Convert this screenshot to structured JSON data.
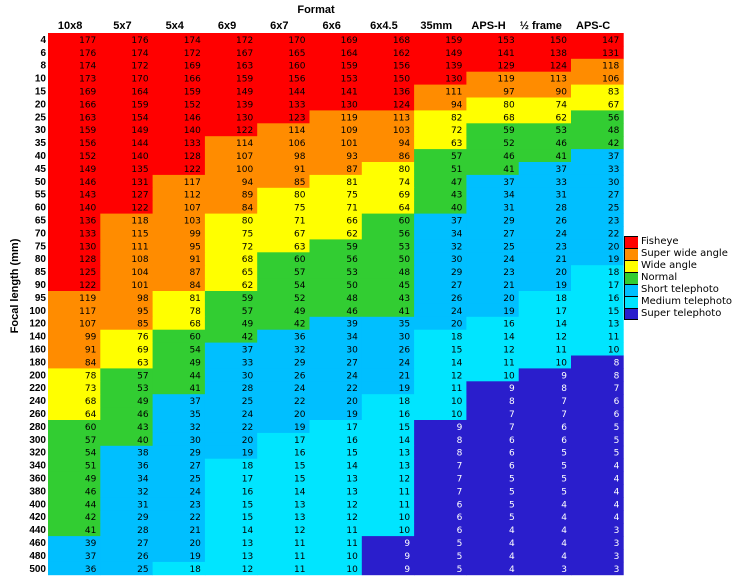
{
  "chart_data": {
    "type": "table",
    "title": "Format",
    "ylabel": "Focal length (mm)",
    "columns": [
      "10x8",
      "5x7",
      "5x4",
      "6x9",
      "6x7",
      "6x6",
      "6x4.5",
      "35mm",
      "APS-H",
      "½ frame",
      "APS-C"
    ],
    "rows": [
      {
        "focal": "4",
        "values": [
          177,
          176,
          174,
          172,
          170,
          169,
          168,
          159,
          153,
          150,
          147
        ]
      },
      {
        "focal": "6",
        "values": [
          176,
          174,
          172,
          167,
          165,
          164,
          162,
          149,
          141,
          138,
          131
        ]
      },
      {
        "focal": "8",
        "values": [
          174,
          172,
          169,
          163,
          160,
          159,
          156,
          139,
          129,
          124,
          118
        ]
      },
      {
        "focal": "10",
        "values": [
          173,
          170,
          166,
          159,
          156,
          153,
          150,
          130,
          119,
          113,
          106
        ]
      },
      {
        "focal": "15",
        "values": [
          169,
          164,
          159,
          149,
          144,
          141,
          136,
          111,
          97,
          90,
          83
        ]
      },
      {
        "focal": "20",
        "values": [
          166,
          159,
          152,
          139,
          133,
          130,
          124,
          94,
          80,
          74,
          67
        ]
      },
      {
        "focal": "25",
        "values": [
          163,
          154,
          146,
          130,
          123,
          119,
          113,
          82,
          68,
          62,
          56
        ]
      },
      {
        "focal": "30",
        "values": [
          159,
          149,
          140,
          122,
          114,
          109,
          103,
          72,
          59,
          53,
          48
        ]
      },
      {
        "focal": "35",
        "values": [
          156,
          144,
          133,
          114,
          106,
          101,
          94,
          63,
          52,
          46,
          42
        ]
      },
      {
        "focal": "40",
        "values": [
          152,
          140,
          128,
          107,
          98,
          93,
          86,
          57,
          46,
          41,
          37
        ]
      },
      {
        "focal": "45",
        "values": [
          149,
          135,
          122,
          100,
          91,
          87,
          80,
          51,
          41,
          37,
          33
        ]
      },
      {
        "focal": "50",
        "values": [
          146,
          131,
          117,
          94,
          85,
          81,
          74,
          47,
          37,
          33,
          30
        ]
      },
      {
        "focal": "55",
        "values": [
          143,
          127,
          112,
          89,
          80,
          75,
          69,
          43,
          34,
          31,
          27
        ]
      },
      {
        "focal": "60",
        "values": [
          140,
          122,
          107,
          84,
          75,
          71,
          64,
          40,
          31,
          28,
          25
        ]
      },
      {
        "focal": "65",
        "values": [
          136,
          118,
          103,
          80,
          71,
          66,
          60,
          37,
          29,
          26,
          23
        ]
      },
      {
        "focal": "70",
        "values": [
          133,
          115,
          99,
          75,
          67,
          62,
          56,
          34,
          27,
          24,
          22
        ]
      },
      {
        "focal": "75",
        "values": [
          130,
          111,
          95,
          72,
          63,
          59,
          53,
          32,
          25,
          23,
          20
        ]
      },
      {
        "focal": "80",
        "values": [
          128,
          108,
          91,
          68,
          60,
          56,
          50,
          30,
          24,
          21,
          19
        ]
      },
      {
        "focal": "85",
        "values": [
          125,
          104,
          87,
          65,
          57,
          53,
          48,
          29,
          23,
          20,
          18
        ]
      },
      {
        "focal": "90",
        "values": [
          122,
          101,
          84,
          62,
          54,
          50,
          45,
          27,
          21,
          19,
          17
        ]
      },
      {
        "focal": "95",
        "values": [
          119,
          98,
          81,
          59,
          52,
          48,
          43,
          26,
          20,
          18,
          16
        ]
      },
      {
        "focal": "100",
        "values": [
          117,
          95,
          78,
          57,
          49,
          46,
          41,
          24,
          19,
          17,
          15
        ]
      },
      {
        "focal": "120",
        "values": [
          107,
          85,
          68,
          49,
          42,
          39,
          35,
          20,
          16,
          14,
          13
        ]
      },
      {
        "focal": "140",
        "values": [
          99,
          76,
          60,
          42,
          36,
          34,
          30,
          18,
          14,
          12,
          11
        ]
      },
      {
        "focal": "160",
        "values": [
          91,
          69,
          54,
          37,
          32,
          30,
          26,
          15,
          12,
          11,
          10
        ]
      },
      {
        "focal": "180",
        "values": [
          84,
          63,
          49,
          33,
          29,
          27,
          24,
          14,
          11,
          10,
          8
        ]
      },
      {
        "focal": "200",
        "values": [
          78,
          57,
          44,
          30,
          26,
          24,
          21,
          12,
          10,
          9,
          8
        ]
      },
      {
        "focal": "220",
        "values": [
          73,
          53,
          41,
          28,
          24,
          22,
          19,
          11,
          9,
          8,
          7
        ]
      },
      {
        "focal": "240",
        "values": [
          68,
          49,
          37,
          25,
          22,
          20,
          18,
          10,
          8,
          7,
          6
        ]
      },
      {
        "focal": "260",
        "values": [
          64,
          46,
          35,
          24,
          20,
          19,
          16,
          10,
          7,
          7,
          6
        ]
      },
      {
        "focal": "280",
        "values": [
          60,
          43,
          32,
          22,
          19,
          17,
          15,
          9,
          7,
          6,
          5
        ]
      },
      {
        "focal": "300",
        "values": [
          57,
          40,
          30,
          20,
          17,
          16,
          14,
          8,
          6,
          6,
          5
        ]
      },
      {
        "focal": "320",
        "values": [
          54,
          38,
          29,
          19,
          16,
          15,
          13,
          8,
          6,
          5,
          5
        ]
      },
      {
        "focal": "340",
        "values": [
          51,
          36,
          27,
          18,
          15,
          14,
          13,
          7,
          6,
          5,
          4
        ]
      },
      {
        "focal": "360",
        "values": [
          49,
          34,
          25,
          17,
          15,
          13,
          12,
          7,
          5,
          5,
          4
        ]
      },
      {
        "focal": "380",
        "values": [
          46,
          32,
          24,
          16,
          14,
          13,
          11,
          7,
          5,
          5,
          4
        ]
      },
      {
        "focal": "400",
        "values": [
          44,
          31,
          23,
          15,
          13,
          12,
          11,
          6,
          5,
          4,
          4
        ]
      },
      {
        "focal": "420",
        "values": [
          42,
          29,
          22,
          15,
          13,
          12,
          10,
          6,
          5,
          4,
          4
        ]
      },
      {
        "focal": "440",
        "values": [
          41,
          28,
          21,
          14,
          12,
          11,
          10,
          6,
          4,
          4,
          3
        ]
      },
      {
        "focal": "460",
        "values": [
          39,
          27,
          20,
          13,
          11,
          11,
          9,
          5,
          4,
          4,
          3
        ]
      },
      {
        "focal": "480",
        "values": [
          37,
          26,
          19,
          13,
          11,
          10,
          9,
          5,
          4,
          4,
          3
        ]
      },
      {
        "focal": "500",
        "values": [
          36,
          25,
          18,
          12,
          11,
          10,
          9,
          5,
          4,
          3,
          3
        ]
      }
    ],
    "categories": [
      {
        "name": "Fisheye",
        "color": "#ff0000",
        "min": 122
      },
      {
        "name": "Super wide angle",
        "color": "#ff8c00",
        "min": 84
      },
      {
        "name": "Wide angle",
        "color": "#ffff00",
        "min": 62
      },
      {
        "name": "Normal",
        "color": "#32cd32",
        "min": 40
      },
      {
        "name": "Short telephoto",
        "color": "#00bfff",
        "min": 19
      },
      {
        "name": "Medium telephoto",
        "color": "#00e5ff",
        "min": 10
      },
      {
        "name": "Super telephoto",
        "color": "#2a1ecc",
        "min": 0
      }
    ],
    "legend_position": "right"
  }
}
